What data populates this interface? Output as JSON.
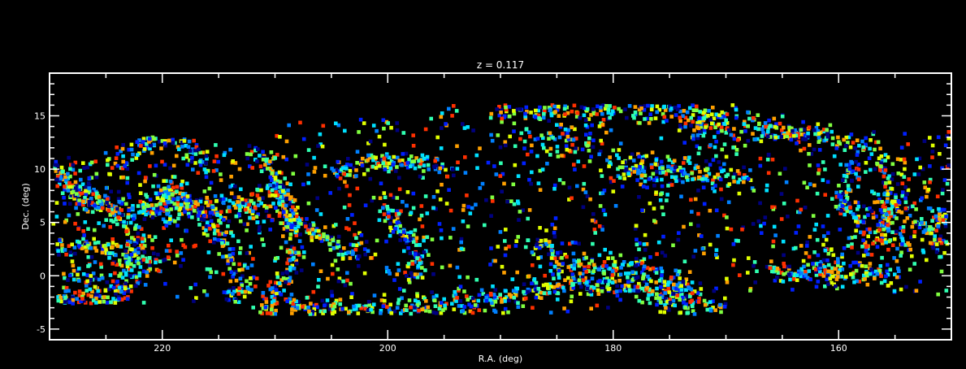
{
  "chart_data": {
    "type": "scatter",
    "title": "z = 0.117",
    "xlabel": "R.A. (deg)",
    "ylabel": "Dec. (deg)",
    "xlim": [
      230,
      150
    ],
    "ylim": [
      -6,
      19
    ],
    "x_reversed": true,
    "xticks": [
      220,
      200,
      180,
      160
    ],
    "yticks": [
      -5,
      0,
      5,
      10,
      15
    ],
    "grid": false,
    "background": "#000000",
    "foreground": "#ffffff",
    "marker": "square",
    "palette": [
      "#000080",
      "#0020ff",
      "#0080ff",
      "#00e0ff",
      "#30ffb0",
      "#80ff40",
      "#e0ff00",
      "#ffa000",
      "#ff3000"
    ],
    "series_structure": {
      "walls": [
        {
          "points": [
            [
              229.5,
              -2.2
            ],
            [
              224,
              -2.3
            ],
            [
              222.5,
              0.2
            ],
            [
              222,
              4
            ],
            [
              225,
              6.5
            ],
            [
              229,
              8.5
            ]
          ],
          "scatter": 0.5
        },
        {
          "points": [
            [
              229.6,
              2.5
            ],
            [
              227,
              3
            ],
            [
              225,
              2.7
            ],
            [
              223,
              1.5
            ],
            [
              220,
              1
            ]
          ],
          "scatter": 0.45
        },
        {
          "points": [
            [
              224,
              10.5
            ],
            [
              221.5,
              12.8
            ],
            [
              218,
              12.8
            ],
            [
              216,
              10
            ]
          ],
          "scatter": 0.6
        },
        {
          "points": [
            [
              229.6,
              10.5
            ],
            [
              227,
              7
            ],
            [
              223,
              6.2
            ],
            [
              219,
              6.5
            ],
            [
              214,
              6.3
            ],
            [
              211,
              6.8
            ]
          ],
          "scatter": 0.5
        },
        {
          "points": [
            [
              212.5,
              12.8
            ],
            [
              210,
              9.5
            ],
            [
              209,
              6
            ],
            [
              207,
              4.5
            ],
            [
              204.8,
              3
            ]
          ],
          "scatter": 0.4
        },
        {
          "points": [
            [
              210.5,
              8.5
            ],
            [
              208.5,
              5.5
            ],
            [
              208,
              2.5
            ],
            [
              210.5,
              -2.8
            ]
          ],
          "scatter": 0.5
        },
        {
          "points": [
            [
              220,
              8.3
            ],
            [
              216,
              5.5
            ],
            [
              214,
              2
            ],
            [
              212.5,
              -0.8
            ],
            [
              214,
              -2.5
            ]
          ],
          "scatter": 0.6
        },
        {
          "points": [
            [
              205,
              9.5
            ],
            [
              201.5,
              10.6
            ],
            [
              198,
              10.8
            ],
            [
              194.5,
              10
            ]
          ],
          "scatter": 0.5
        },
        {
          "points": [
            [
              200.5,
              7.5
            ],
            [
              199,
              4.5
            ],
            [
              197.2,
              2.3
            ],
            [
              198,
              -0.5
            ]
          ],
          "scatter": 0.45
        },
        {
          "points": [
            [
              211,
              -3
            ],
            [
              202.5,
              -3.2
            ],
            [
              195,
              -3
            ],
            [
              189,
              -1.8
            ],
            [
              184.5,
              -0.7
            ],
            [
              178,
              -1
            ],
            [
              172,
              -2.8
            ],
            [
              169,
              -3.2
            ]
          ],
          "scatter": 0.5
        },
        {
          "points": [
            [
              190.5,
              15.3
            ],
            [
              182,
              15.8
            ],
            [
              176,
              15.5
            ],
            [
              170,
              14.5
            ],
            [
              165,
              13.5
            ],
            [
              157,
              12.5
            ]
          ],
          "scatter": 0.6
        },
        {
          "points": [
            [
              180,
              10.3
            ],
            [
              176,
              10
            ],
            [
              172,
              9.5
            ],
            [
              168,
              9
            ]
          ],
          "scatter": 0.6
        },
        {
          "points": [
            [
              186.5,
              3
            ],
            [
              183.5,
              0.5
            ],
            [
              180,
              1
            ],
            [
              176,
              0
            ],
            [
              173,
              -1.5
            ]
          ],
          "scatter": 0.6
        },
        {
          "points": [
            [
              166,
              0
            ],
            [
              162,
              0.2
            ],
            [
              158,
              0.5
            ],
            [
              155,
              0
            ]
          ],
          "scatter": 0.5
        },
        {
          "points": [
            [
              156.5,
              11
            ],
            [
              155.5,
              8
            ],
            [
              155,
              6
            ],
            [
              156.5,
              4
            ],
            [
              153.5,
              2.5
            ]
          ],
          "scatter": 0.6
        },
        {
          "points": [
            [
              158.5,
              10.7
            ],
            [
              160,
              7
            ],
            [
              158,
              5.5
            ],
            [
              157.5,
              2.5
            ]
          ],
          "scatter": 0.5
        },
        {
          "points": [
            [
              151.5,
              6
            ],
            [
              150.3,
              5.5
            ],
            [
              152,
              4
            ],
            [
              151,
              2
            ]
          ],
          "scatter": 0.45
        }
      ],
      "background_galaxies": "uniform within footprint"
    }
  }
}
